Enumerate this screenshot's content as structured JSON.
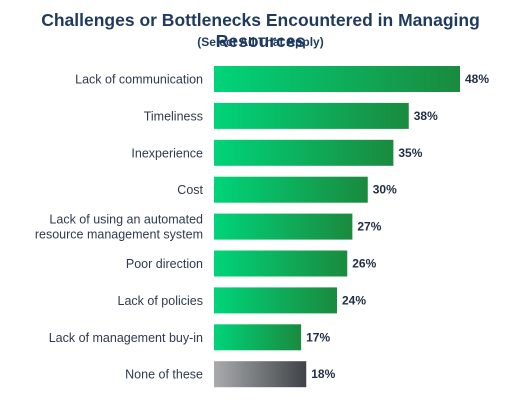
{
  "chart_data": {
    "type": "bar",
    "orientation": "horizontal",
    "title": "Challenges or Bottlenecks Encountered in Managing Resources",
    "subtitle": "(Select All That Apply)",
    "categories": [
      [
        "Lack of communication"
      ],
      [
        "Timeliness"
      ],
      [
        "Inexperience"
      ],
      [
        "Cost"
      ],
      [
        "Lack of using an automated",
        "resource management system"
      ],
      [
        "Poor direction"
      ],
      [
        "Lack of policies"
      ],
      [
        "Lack of management buy-in"
      ],
      [
        "None of these"
      ]
    ],
    "values": [
      48,
      38,
      35,
      30,
      27,
      26,
      24,
      17,
      18
    ],
    "value_labels": [
      "48%",
      "38%",
      "35%",
      "30%",
      "27%",
      "26%",
      "24%",
      "17%",
      "18%"
    ],
    "xlim": [
      0,
      48
    ],
    "colors": {
      "green_start": "#00d47a",
      "green_end": "#1a8a3e",
      "gray_start": "#a9abad",
      "gray_end": "#3f4347"
    }
  }
}
